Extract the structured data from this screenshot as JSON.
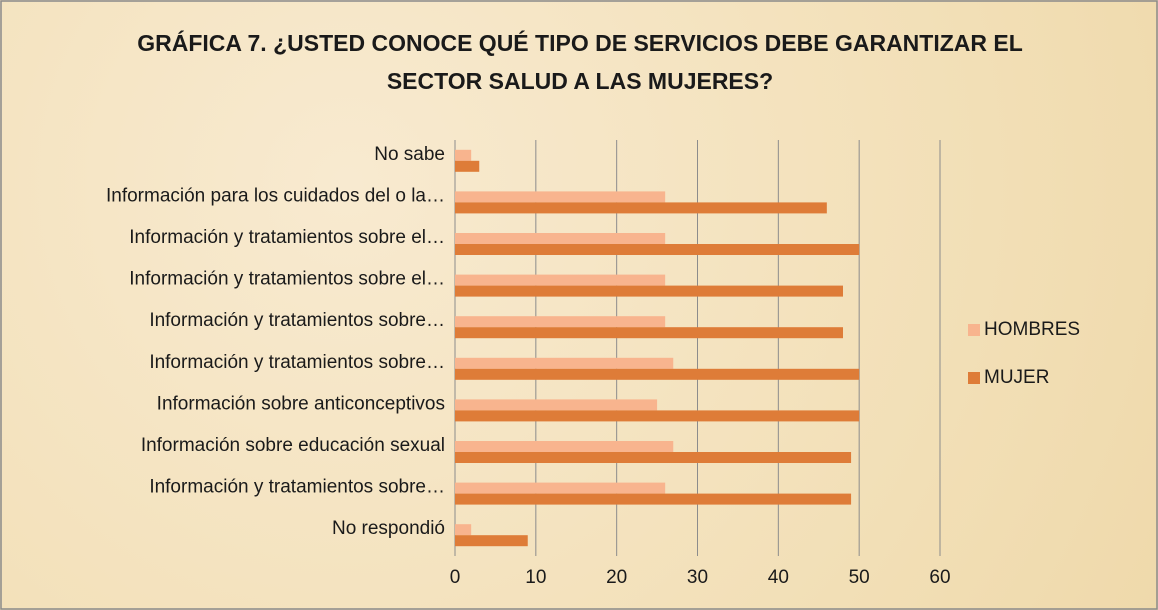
{
  "chart_data": {
    "type": "bar",
    "orientation": "horizontal",
    "title": "GRÁFICA 7. ¿USTED CONOCE QUÉ TIPO DE SERVICIOS DEBE GARANTIZAR EL SECTOR SALUD A LAS MUJERES?",
    "categories": [
      "No sabe",
      "Información para los cuidados del o la…",
      "Información y tratamientos sobre el…",
      "Información y tratamientos sobre el…",
      "Información y tratamientos sobre…",
      "Información y tratamientos sobre…",
      "Información sobre anticonceptivos",
      "Información sobre educación sexual",
      "Información y tratamientos sobre…",
      "No respondió"
    ],
    "series": [
      {
        "name": "HOMBRES",
        "color": "#f8b48e",
        "values": [
          2,
          26,
          26,
          26,
          26,
          27,
          25,
          27,
          26,
          2
        ]
      },
      {
        "name": "MUJER",
        "color": "#de7c38",
        "values": [
          3,
          46,
          50,
          48,
          48,
          50,
          50,
          49,
          49,
          9
        ]
      }
    ],
    "xlim": [
      0,
      60
    ],
    "xticks": [
      0,
      10,
      20,
      30,
      40,
      50,
      60
    ],
    "grid": true,
    "legend": "right"
  }
}
